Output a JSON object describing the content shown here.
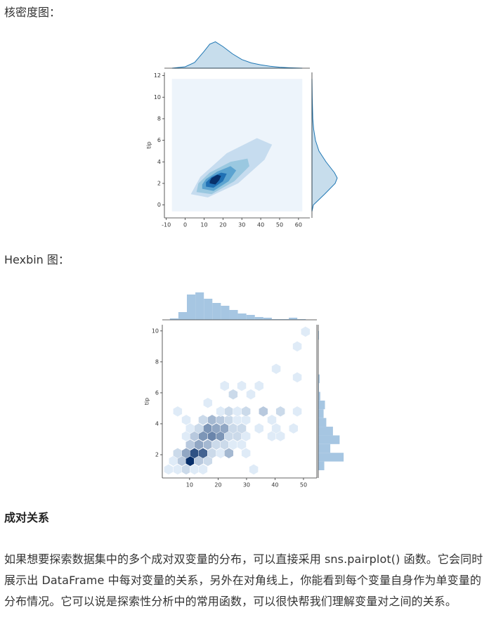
{
  "headings": [
    "核密度图：",
    "Hexbin 图："
  ],
  "section_title": "成对关系",
  "paragraph": "如果想要探索数据集中的多个成对双变量的分布，可以直接采用 sns.pairplot() 函数。它会同时展示出 DataFrame 中每对变量的关系，另外在对角线上，你能看到每个变量自身作为单变量的分布情况。它可以说是探索性分析中的常用函数，可以很快帮我们理解变量对之间的关系。",
  "chart_data": [
    {
      "type": "kde",
      "y_label": "tip",
      "color": "#1f77b4",
      "xlim": [
        -11,
        66
      ],
      "ylim": [
        -1.2,
        12.3
      ],
      "xticks": [
        -10,
        0,
        10,
        20,
        30,
        40,
        50,
        60
      ],
      "yticks": [
        0,
        2,
        4,
        6,
        8,
        10,
        12
      ],
      "contours": [
        {
          "color": "#edf4fb",
          "x": [
            -7,
            62,
            62,
            -7
          ],
          "y": [
            -0.6,
            -0.6,
            11.7,
            11.7
          ]
        },
        {
          "color": "#c6dcef",
          "x": [
            3,
            12,
            28,
            42,
            46,
            38,
            22,
            8
          ],
          "y": [
            1.0,
            0.7,
            2.0,
            4.2,
            5.6,
            6.2,
            4.8,
            2.6
          ]
        },
        {
          "color": "#9ac8e0",
          "x": [
            6,
            14,
            26,
            34,
            33,
            24,
            13,
            7
          ],
          "y": [
            1.2,
            1.0,
            2.2,
            3.6,
            4.3,
            4.0,
            3.0,
            2.0
          ]
        },
        {
          "color": "#5ba3d0",
          "x": [
            9,
            15,
            23,
            27,
            24,
            17,
            11,
            9
          ],
          "y": [
            1.5,
            1.3,
            2.2,
            3.2,
            3.6,
            3.1,
            2.4,
            1.9
          ]
        },
        {
          "color": "#2070b4",
          "x": [
            11,
            15,
            20,
            22,
            19,
            14,
            11,
            11
          ],
          "y": [
            1.7,
            1.6,
            2.2,
            2.9,
            3.0,
            2.6,
            2.1,
            1.9
          ]
        },
        {
          "color": "#08306b",
          "x": [
            13,
            16,
            18,
            19,
            17,
            14,
            13,
            13
          ],
          "y": [
            2.0,
            1.9,
            2.3,
            2.7,
            2.8,
            2.5,
            2.2,
            2.1
          ]
        }
      ],
      "top_density": {
        "ylim": [
          0,
          0.06
        ],
        "x": [
          -7,
          0,
          5,
          10,
          13,
          16,
          20,
          25,
          30,
          35,
          40,
          45,
          50,
          55,
          62
        ],
        "values": [
          0,
          0.003,
          0.012,
          0.035,
          0.05,
          0.055,
          0.045,
          0.03,
          0.018,
          0.011,
          0.007,
          0.004,
          0.002,
          0.001,
          0
        ]
      },
      "right_density": {
        "xlim": [
          0,
          0.38
        ],
        "y": [
          -0.6,
          0,
          1,
          2,
          2.5,
          3,
          4,
          5,
          6,
          7,
          8,
          10,
          11.7
        ],
        "values": [
          0,
          0.02,
          0.18,
          0.33,
          0.36,
          0.32,
          0.2,
          0.1,
          0.05,
          0.025,
          0.012,
          0.004,
          0
        ]
      }
    },
    {
      "type": "hexbin",
      "y_label": "tip",
      "xlim": [
        0.4,
        54.7
      ],
      "ylim": [
        0.5,
        10.4
      ],
      "xticks": [
        10,
        20,
        30,
        40,
        50
      ],
      "yticks": [
        2,
        4,
        6,
        8,
        10
      ],
      "color_range": [
        "#dfebf7",
        "#08306b"
      ],
      "hexbins": {
        "x": [
          2.6,
          5.8,
          8.8,
          11.7,
          14.7,
          32.5,
          4.3,
          7.3,
          10.2,
          13.2,
          16.4,
          5.8,
          8.8,
          11.7,
          14.7,
          17.9,
          20.9,
          23.8,
          29.8,
          10.2,
          13.2,
          16.4,
          19.4,
          22.3,
          25.3,
          28.3,
          8.8,
          11.7,
          14.7,
          17.9,
          20.9,
          23.8,
          26.8,
          29.8,
          38.9,
          41.9,
          10.2,
          13.2,
          16.4,
          19.4,
          22.3,
          25.3,
          28.3,
          34.4,
          40.4,
          46.5,
          8.8,
          14.7,
          17.9,
          20.9,
          23.8,
          26.8,
          29.8,
          38.9,
          5.8,
          20.9,
          23.8,
          26.8,
          29.8,
          35.9,
          41.9,
          47.8,
          16.4,
          25.3,
          31.5,
          22.3,
          28.3,
          34.4,
          47.8,
          40.4,
          47.8,
          50.7
        ],
        "y": [
          1.05,
          1.05,
          1.05,
          1.05,
          1.05,
          1.05,
          1.6,
          1.6,
          1.6,
          1.6,
          1.6,
          2.1,
          2.1,
          2.1,
          2.1,
          2.1,
          2.1,
          2.1,
          2.1,
          2.65,
          2.65,
          2.65,
          2.65,
          2.65,
          2.65,
          2.65,
          3.2,
          3.2,
          3.2,
          3.2,
          3.2,
          3.2,
          3.2,
          3.2,
          3.2,
          3.2,
          3.7,
          3.7,
          3.7,
          3.7,
          3.7,
          3.7,
          3.7,
          3.7,
          3.7,
          3.7,
          4.25,
          4.25,
          4.25,
          4.25,
          4.25,
          4.25,
          4.25,
          4.25,
          4.8,
          4.8,
          4.8,
          4.8,
          4.8,
          4.8,
          4.8,
          4.8,
          5.35,
          5.9,
          5.9,
          6.45,
          6.45,
          6.45,
          7.0,
          7.55,
          9.0,
          9.95
        ],
        "counts": [
          1,
          1,
          2,
          1,
          1,
          1,
          1,
          3,
          12,
          3,
          2,
          2,
          5,
          10,
          9,
          2,
          1,
          4,
          1,
          3,
          5,
          4,
          2,
          2,
          1,
          1,
          1,
          3,
          6,
          7,
          6,
          2,
          2,
          1,
          1,
          1,
          1,
          2,
          6,
          5,
          5,
          2,
          2,
          1,
          1,
          1,
          1,
          2,
          4,
          3,
          2,
          1,
          1,
          1,
          1,
          1,
          2,
          1,
          2,
          3,
          2,
          1,
          1,
          2,
          1,
          1,
          1,
          1,
          1,
          1,
          1,
          1
        ]
      },
      "top_hist": {
        "color": "#a6c6e2",
        "ylim": [
          0,
          40
        ],
        "bins": [
          3.07,
          6.05,
          9.04,
          12.02,
          15.01,
          17.99,
          20.97,
          23.96,
          26.94,
          29.93,
          32.91,
          35.89,
          38.88,
          41.86,
          44.85,
          47.83,
          50.81
        ],
        "counts": [
          2,
          11,
          36,
          39,
          30,
          24,
          20,
          14,
          9,
          7,
          4,
          3,
          1,
          1,
          3,
          1
        ]
      },
      "right_hist": {
        "color": "#a6c6e2",
        "xlim": [
          0,
          40
        ],
        "bins": [
          1,
          1.5625,
          2.125,
          2.6875,
          3.25,
          3.8125,
          4.375,
          4.9375,
          5.5,
          6.0625,
          6.625,
          7.1875,
          7.75,
          8.3125,
          8.875,
          9.4375,
          10
        ],
        "counts": [
          9,
          38,
          18,
          32,
          22,
          12,
          8,
          10,
          3,
          1,
          2,
          0,
          0,
          0,
          0,
          1
        ]
      }
    }
  ]
}
